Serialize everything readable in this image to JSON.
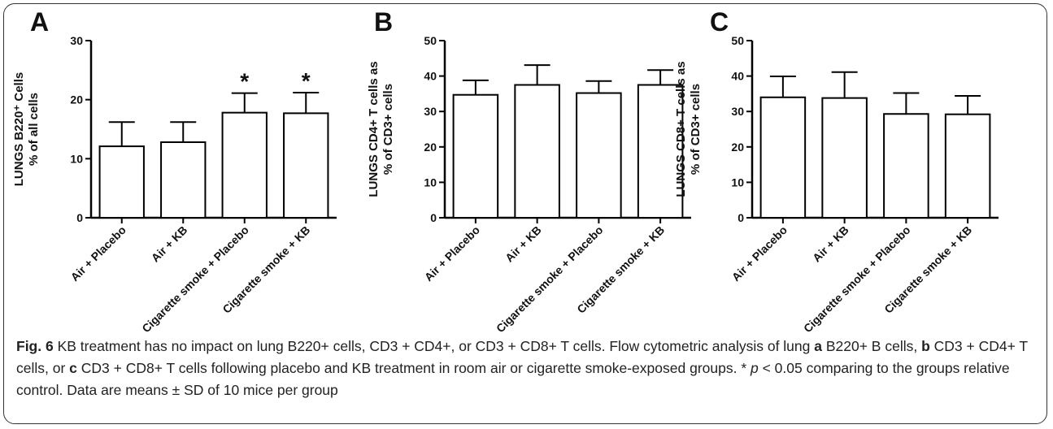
{
  "chart_data": [
    {
      "type": "bar",
      "panel_label": "A",
      "ylabel_lines": [
        "LUNGS B220⁺ Cells",
        "% of all cells"
      ],
      "categories": [
        "Air + Placebo",
        "Air + KB",
        "Cigarette smoke + Placebo",
        "Cigarette smoke + KB"
      ],
      "values": [
        12.1,
        12.8,
        17.8,
        17.7
      ],
      "errors": [
        4.1,
        3.4,
        3.3,
        3.5
      ],
      "significance": [
        "",
        "",
        "*",
        "*"
      ],
      "ylim": [
        0,
        30
      ],
      "yticks": [
        0,
        10,
        20,
        30
      ],
      "grid": false
    },
    {
      "type": "bar",
      "panel_label": "B",
      "ylabel_lines": [
        "LUNGS CD4+ T cells as",
        "% of CD3+ cells"
      ],
      "categories": [
        "Air + Placebo",
        "Air + KB",
        "Cigarette smoke + Placebo",
        "Cigarette smoke + KB"
      ],
      "values": [
        34.7,
        37.5,
        35.2,
        37.5
      ],
      "errors": [
        4.1,
        5.6,
        3.4,
        4.2
      ],
      "significance": [
        "",
        "",
        "",
        ""
      ],
      "ylim": [
        0,
        50
      ],
      "yticks": [
        0,
        10,
        20,
        30,
        40,
        50
      ],
      "grid": false
    },
    {
      "type": "bar",
      "panel_label": "C",
      "ylabel_lines": [
        "LUNGS CD8+ T cells as",
        "% of CD3+ cells"
      ],
      "categories": [
        "Air + Placebo",
        "Air + KB",
        "Cigarette smoke + Placebo",
        "Cigarette smoke + KB"
      ],
      "values": [
        34.0,
        33.8,
        29.3,
        29.2
      ],
      "errors": [
        5.9,
        7.3,
        5.9,
        5.2
      ],
      "significance": [
        "",
        "",
        "",
        ""
      ],
      "ylim": [
        0,
        50
      ],
      "yticks": [
        0,
        10,
        20,
        30,
        40,
        50
      ],
      "grid": false
    }
  ],
  "caption": {
    "fig_label": "Fig. 6",
    "t1": " KB treatment has no impact on lung B220+ cells, CD3 + CD4+, or CD3 + CD8+ T cells. Flow cytometric analysis of lung ",
    "a": "a",
    "t2": " B220+ B cells, ",
    "b": "b",
    "t3": " CD3 + CD4+ T cells, or ",
    "c": "c",
    "t4": " CD3 + CD8+ T cells following placebo and KB treatment in room air or cigarette smoke-exposed groups. * ",
    "p": "p",
    "t5": " < 0.05 comparing to the groups relative control. Data are means ± SD of 10 mice per group"
  }
}
